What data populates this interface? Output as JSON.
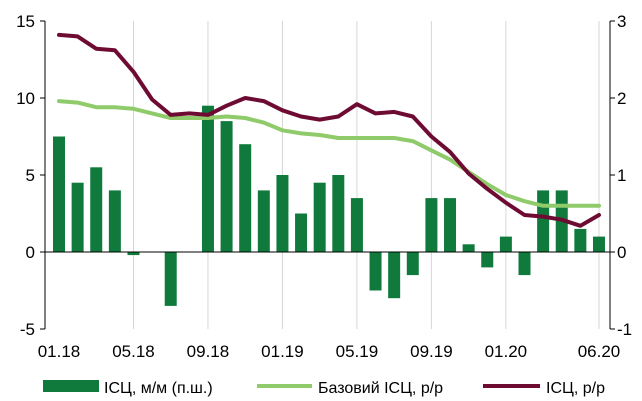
{
  "chart_data": {
    "type": "bar",
    "categories": [
      "01.18",
      "02.18",
      "03.18",
      "04.18",
      "05.18",
      "06.18",
      "07.18",
      "08.18",
      "09.18",
      "10.18",
      "11.18",
      "12.18",
      "01.19",
      "02.19",
      "03.19",
      "04.19",
      "05.19",
      "06.19",
      "07.19",
      "08.19",
      "09.19",
      "10.19",
      "11.19",
      "12.19",
      "01.20",
      "02.20",
      "03.20",
      "04.20",
      "05.20",
      "06.20"
    ],
    "x_tick_labels": [
      "01.18",
      "05.18",
      "09.18",
      "01.19",
      "05.19",
      "09.19",
      "01.20",
      "06.20"
    ],
    "x_tick_categories": [
      "01.18",
      "05.18",
      "09.18",
      "01.19",
      "05.19",
      "09.19",
      "01.20",
      "06.20"
    ],
    "y_left": {
      "lim": [
        -5,
        15
      ],
      "ticks": [
        -5,
        0,
        5,
        10,
        15
      ]
    },
    "y_right": {
      "lim": [
        -1,
        3
      ],
      "ticks": [
        -1,
        0,
        1,
        2,
        3
      ]
    },
    "grid": "vertical",
    "legend_position": "bottom",
    "colors": {
      "bars": "#107a3c",
      "base": "#8fcb6a",
      "cpi": "#6e0b33"
    },
    "series": [
      {
        "name": "ІСЦ, м/м (п.ш.)",
        "type": "bar",
        "axis": "right",
        "values": [
          1.5,
          0.9,
          1.1,
          0.8,
          -0.04,
          null,
          -0.7,
          null,
          1.9,
          1.7,
          1.4,
          0.8,
          1.0,
          0.5,
          0.9,
          1.0,
          0.7,
          -0.5,
          -0.6,
          -0.3,
          0.7,
          0.7,
          0.1,
          -0.2,
          0.2,
          -0.3,
          0.8,
          0.8,
          0.3,
          0.2
        ]
      },
      {
        "name": "Базовий ІСЦ, р/р",
        "type": "line",
        "axis": "left",
        "values": [
          9.8,
          9.7,
          9.4,
          9.4,
          9.3,
          9.0,
          8.7,
          8.7,
          8.7,
          8.8,
          8.7,
          8.4,
          7.9,
          7.7,
          7.6,
          7.4,
          7.4,
          7.4,
          7.4,
          7.2,
          6.6,
          6.0,
          5.2,
          4.4,
          3.7,
          3.3,
          3.0,
          3.0,
          3.0,
          3.0
        ]
      },
      {
        "name": "ІСЦ, р/р",
        "type": "line",
        "axis": "left",
        "values": [
          14.1,
          14.0,
          13.2,
          13.1,
          11.7,
          9.9,
          8.9,
          9.0,
          8.9,
          9.5,
          10.0,
          9.8,
          9.2,
          8.8,
          8.6,
          8.8,
          9.6,
          9.0,
          9.1,
          8.8,
          7.5,
          6.5,
          5.1,
          4.1,
          3.2,
          2.4,
          2.3,
          2.1,
          1.7,
          2.4
        ]
      }
    ]
  }
}
